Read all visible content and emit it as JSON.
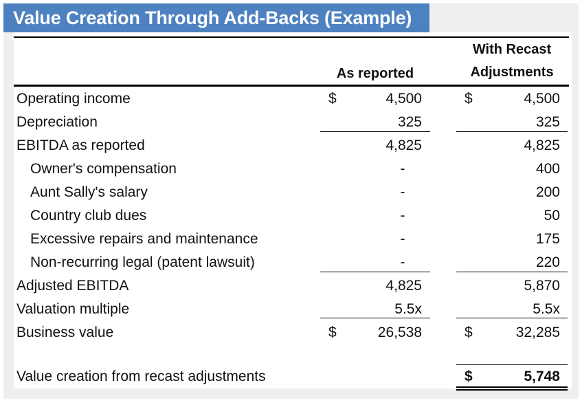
{
  "title": "Value Creation Through Add-Backs (Example)",
  "headers": {
    "as_reported": "As reported",
    "recast_line1": "With Recast",
    "recast_line2": "Adjustments"
  },
  "currency_symbol": "$",
  "rows": [
    {
      "label": "Operating income",
      "indent": false,
      "as_reported": "4,500",
      "recast": "4,500",
      "dollar": true
    },
    {
      "label": "Depreciation",
      "indent": false,
      "as_reported": "325",
      "recast": "325",
      "dollar": false
    },
    {
      "label": "EBITDA as reported",
      "indent": false,
      "as_reported": "4,825",
      "recast": "4,825",
      "dollar": false
    },
    {
      "label": "Owner's compensation",
      "indent": true,
      "as_reported": "-",
      "recast": "400",
      "dollar": false
    },
    {
      "label": "Aunt Sally's salary",
      "indent": true,
      "as_reported": "-",
      "recast": "200",
      "dollar": false
    },
    {
      "label": "Country club dues",
      "indent": true,
      "as_reported": "-",
      "recast": "50",
      "dollar": false
    },
    {
      "label": "Excessive repairs and maintenance",
      "indent": true,
      "as_reported": "-",
      "recast": "175",
      "dollar": false
    },
    {
      "label": "Non-recurring legal (patent lawsuit)",
      "indent": true,
      "as_reported": "-",
      "recast": "220",
      "dollar": false
    },
    {
      "label": "Adjusted EBITDA",
      "indent": false,
      "as_reported": "4,825",
      "recast": "5,870",
      "dollar": false
    },
    {
      "label": "Valuation multiple",
      "indent": false,
      "as_reported": "5.5x",
      "recast": "5.5x",
      "dollar": false
    },
    {
      "label": "Business value",
      "indent": false,
      "as_reported": "26,538",
      "recast": "32,285",
      "dollar": true
    }
  ],
  "value_creation": {
    "label": "Value creation from recast adjustments",
    "value": "5,748"
  }
}
